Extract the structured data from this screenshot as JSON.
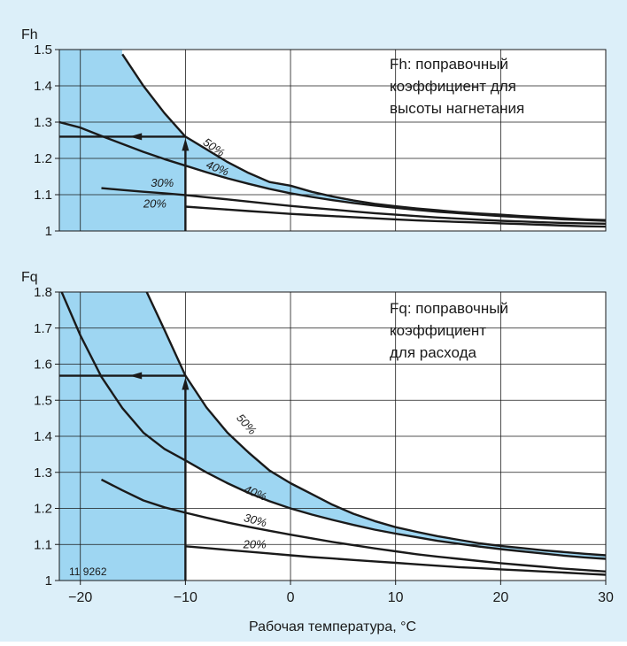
{
  "colors": {
    "background": "#dceff9",
    "band_fill": "#9ed6f2",
    "plot_bg": "#ffffff",
    "grid": "#1a1a1a",
    "curve": "#1a1a1a"
  },
  "xlabel": "Рабочая температура, °C",
  "x_ticks": [
    "−20",
    "−10",
    "0",
    "10",
    "20",
    "30"
  ],
  "chart_data": [
    {
      "type": "line",
      "id": "fh",
      "ylabel": "Fh",
      "annotation": [
        "Fh: поправочный",
        "коэффициент для",
        "высоты нагнетания"
      ],
      "xlim": [
        -22,
        30
      ],
      "ylim": [
        1.0,
        1.5
      ],
      "y_ticks": [
        "1.5",
        "1.4",
        "1.3",
        "1.2",
        "1.1",
        "1"
      ],
      "x": [
        -22,
        -20,
        -18,
        -16,
        -14,
        -12,
        -10,
        -8,
        -6,
        -4,
        -2,
        0,
        2,
        4,
        6,
        8,
        10,
        12,
        14,
        16,
        18,
        20,
        22,
        24,
        26,
        28,
        30
      ],
      "series": [
        {
          "name": "50%",
          "values": [
            null,
            null,
            null,
            1.487,
            1.4,
            1.325,
            1.26,
            1.225,
            1.19,
            1.16,
            1.135,
            1.125,
            1.108,
            1.095,
            1.084,
            1.075,
            1.068,
            1.062,
            1.057,
            1.052,
            1.048,
            1.045,
            1.041,
            1.038,
            1.035,
            1.032,
            1.03
          ]
        },
        {
          "name": "40%",
          "values": [
            1.3,
            1.285,
            1.262,
            1.24,
            1.218,
            1.198,
            1.18,
            1.162,
            1.145,
            1.13,
            1.116,
            1.104,
            1.094,
            1.085,
            1.077,
            1.07,
            1.064,
            1.058,
            1.053,
            1.049,
            1.045,
            1.041,
            1.038,
            1.035,
            1.032,
            1.03,
            1.028
          ]
        },
        {
          "name": "30%",
          "values": [
            null,
            null,
            1.118,
            1.113,
            1.108,
            1.104,
            1.099,
            1.093,
            1.087,
            1.081,
            1.075,
            1.069,
            1.064,
            1.059,
            1.054,
            1.049,
            1.045,
            1.041,
            1.037,
            1.034,
            1.031,
            1.028,
            1.026,
            1.024,
            1.022,
            1.021,
            1.02
          ]
        },
        {
          "name": "20%",
          "values": [
            null,
            null,
            null,
            null,
            null,
            null,
            1.067,
            1.063,
            1.059,
            1.055,
            1.051,
            1.047,
            1.044,
            1.041,
            1.038,
            1.035,
            1.032,
            1.029,
            1.027,
            1.025,
            1.023,
            1.021,
            1.019,
            1.017,
            1.015,
            1.013,
            1.012
          ]
        }
      ],
      "series_labels": [
        {
          "text": "50%",
          "x": -8.4,
          "y": 1.24,
          "rotate": 35
        },
        {
          "text": "40%",
          "x": -8.1,
          "y": 1.175,
          "rotate": 22
        },
        {
          "text": "30%",
          "x": -13.3,
          "y": 1.122,
          "rotate": 0
        },
        {
          "text": "20%",
          "x": -14.0,
          "y": 1.065,
          "rotate": 0
        }
      ],
      "reading": {
        "x": -10,
        "y_start": 1.0,
        "y_value": 1.26
      }
    },
    {
      "type": "line",
      "id": "fq",
      "ylabel": "Fq",
      "annotation": [
        "Fq: поправочный",
        "коэффициент",
        "для расхода"
      ],
      "figure_number": "11  9262",
      "xlim": [
        -22,
        30
      ],
      "ylim": [
        1.0,
        1.8
      ],
      "y_ticks": [
        "1.8",
        "1.7",
        "1.6",
        "1.5",
        "1.4",
        "1.3",
        "1.2",
        "1.1",
        "1"
      ],
      "x": [
        -22,
        -20,
        -18,
        -16,
        -14,
        -12,
        -10,
        -8,
        -6,
        -4,
        -2,
        0,
        2,
        4,
        6,
        8,
        10,
        12,
        14,
        16,
        18,
        20,
        22,
        24,
        26,
        28,
        30
      ],
      "series": [
        {
          "name": "50%",
          "values": [
            null,
            null,
            null,
            null,
            1.82,
            1.695,
            1.568,
            1.48,
            1.41,
            1.355,
            1.305,
            1.27,
            1.24,
            1.21,
            1.185,
            1.165,
            1.148,
            1.135,
            1.123,
            1.113,
            1.103,
            1.096,
            1.09,
            1.084,
            1.079,
            1.074,
            1.07
          ]
        },
        {
          "name": "40%",
          "values": [
            1.815,
            1.68,
            1.565,
            1.478,
            1.41,
            1.365,
            1.333,
            1.3,
            1.27,
            1.243,
            1.22,
            1.2,
            1.183,
            1.168,
            1.154,
            1.141,
            1.13,
            1.12,
            1.11,
            1.102,
            1.094,
            1.087,
            1.081,
            1.075,
            1.069,
            1.064,
            1.06
          ]
        },
        {
          "name": "30%",
          "values": [
            null,
            null,
            1.28,
            1.25,
            1.222,
            1.203,
            1.188,
            1.174,
            1.161,
            1.149,
            1.138,
            1.127,
            1.117,
            1.107,
            1.098,
            1.089,
            1.081,
            1.073,
            1.066,
            1.06,
            1.054,
            1.048,
            1.043,
            1.038,
            1.033,
            1.029,
            1.025
          ]
        },
        {
          "name": "20%",
          "values": [
            null,
            null,
            null,
            null,
            null,
            null,
            1.095,
            1.09,
            1.085,
            1.08,
            1.075,
            1.07,
            1.065,
            1.061,
            1.057,
            1.053,
            1.049,
            1.045,
            1.041,
            1.037,
            1.034,
            1.031,
            1.028,
            1.025,
            1.022,
            1.019,
            1.016
          ]
        }
      ],
      "series_labels": [
        {
          "text": "50%",
          "x": -5.2,
          "y": 1.45,
          "rotate": 48
        },
        {
          "text": "40%",
          "x": -4.5,
          "y": 1.245,
          "rotate": 22
        },
        {
          "text": "30%",
          "x": -4.5,
          "y": 1.165,
          "rotate": 15
        },
        {
          "text": "20%",
          "x": -4.5,
          "y": 1.09,
          "rotate": 0
        }
      ],
      "reading": {
        "x": -10,
        "y_start": 1.0,
        "y_value": 1.568
      }
    }
  ]
}
